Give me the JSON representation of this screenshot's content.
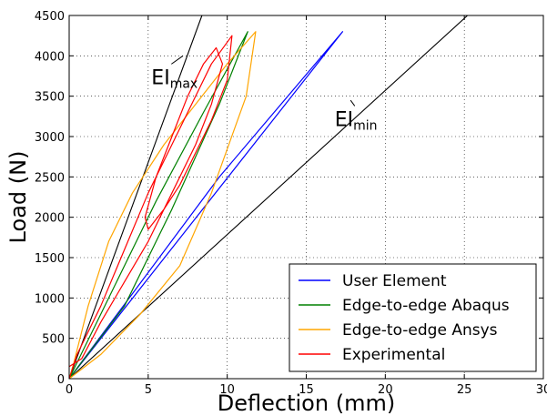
{
  "chart_data": {
    "type": "line",
    "xlabel": "Deflection (mm)",
    "ylabel": "Load (N)",
    "xlim": [
      0,
      30
    ],
    "ylim": [
      0,
      4500
    ],
    "xticks": [
      0,
      5,
      10,
      15,
      20,
      25,
      30
    ],
    "yticks": [
      0,
      500,
      1000,
      1500,
      2000,
      2500,
      3000,
      3500,
      4000,
      4500
    ],
    "grid": true,
    "legend_position": "lower-right",
    "series": [
      {
        "name": "User Element",
        "color": "#0000ff",
        "x": [
          0,
          17.3,
          9.5,
          0
        ],
        "y": [
          0,
          4300,
          2500,
          0
        ]
      },
      {
        "name": "Edge-to-edge Abaqus",
        "color": "#008000",
        "x": [
          0,
          2.5,
          5.5,
          8.5,
          11.3,
          9.5,
          6.5,
          3.5,
          0
        ],
        "y": [
          0,
          1000,
          2200,
          3300,
          4300,
          3400,
          2100,
          900,
          0
        ]
      },
      {
        "name": "Edge-to-edge Ansys",
        "color": "#ffa500",
        "x": [
          0,
          0.3,
          1.2,
          2.5,
          4.0,
          6.0,
          8.0,
          10.0,
          11.8,
          11.2,
          9.0,
          7.0,
          4.5,
          2.0,
          0
        ],
        "y": [
          0,
          200,
          900,
          1700,
          2300,
          2900,
          3400,
          3900,
          4300,
          3500,
          2300,
          1400,
          800,
          300,
          0
        ]
      },
      {
        "name": "Experimental",
        "color": "#ff0000",
        "x": [
          0,
          0.5,
          2.0,
          3.5,
          5.0,
          6.5,
          8.0,
          9.0,
          10.3,
          10.0,
          9.0,
          8.0,
          7.0,
          6.0,
          5.0,
          4.8,
          5.5,
          6.5,
          7.5,
          8.5,
          9.3,
          9.7,
          9.0,
          8.0,
          6.5,
          5.0,
          3.5,
          2.0,
          0.8,
          0
        ],
        "y": [
          0,
          300,
          900,
          1600,
          2300,
          2900,
          3500,
          3900,
          4250,
          3700,
          3200,
          2800,
          2400,
          2100,
          1850,
          2000,
          2500,
          3000,
          3500,
          3900,
          4100,
          3900,
          3400,
          2900,
          2300,
          1700,
          1200,
          700,
          250,
          150
        ]
      }
    ],
    "reference_lines": [
      {
        "x": [
          0,
          8.4
        ],
        "y": [
          0,
          4500
        ],
        "color": "#000000"
      },
      {
        "x": [
          0,
          25.2
        ],
        "y": [
          0,
          4500
        ],
        "color": "#000000"
      }
    ],
    "annotations": [
      {
        "main": "EI",
        "sub": "max",
        "x": 5.2,
        "y": 3650,
        "arrow_to": [
          7.2,
          4000
        ]
      },
      {
        "main": "EI",
        "sub": "min",
        "x": 16.8,
        "y": 3130,
        "arrow_to": [
          17.8,
          3450
        ]
      }
    ]
  }
}
